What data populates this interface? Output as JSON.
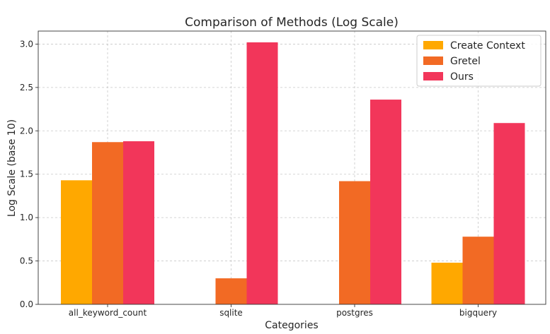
{
  "chart_data": {
    "type": "bar",
    "title": "Comparison of Methods (Log Scale)",
    "xlabel": "Categories",
    "ylabel": "Log Scale (base 10)",
    "categories": [
      "all_keyword_count",
      "sqlite",
      "postgres",
      "bigquery"
    ],
    "series": [
      {
        "name": "Create Context",
        "color": "#FFA800",
        "values": [
          1.43,
          0,
          0,
          0.48
        ]
      },
      {
        "name": "Gretel",
        "color": "#F26A24",
        "values": [
          1.87,
          0.3,
          1.42,
          0.78
        ]
      },
      {
        "name": "Ours",
        "color": "#F2365A",
        "values": [
          1.88,
          3.02,
          2.36,
          2.09
        ]
      }
    ],
    "ylim": [
      0,
      3.15
    ],
    "yticks": [
      "0.0",
      "0.5",
      "1.0",
      "1.5",
      "2.0",
      "2.5",
      "3.0"
    ],
    "grid": true,
    "legend_position": "top-right"
  }
}
